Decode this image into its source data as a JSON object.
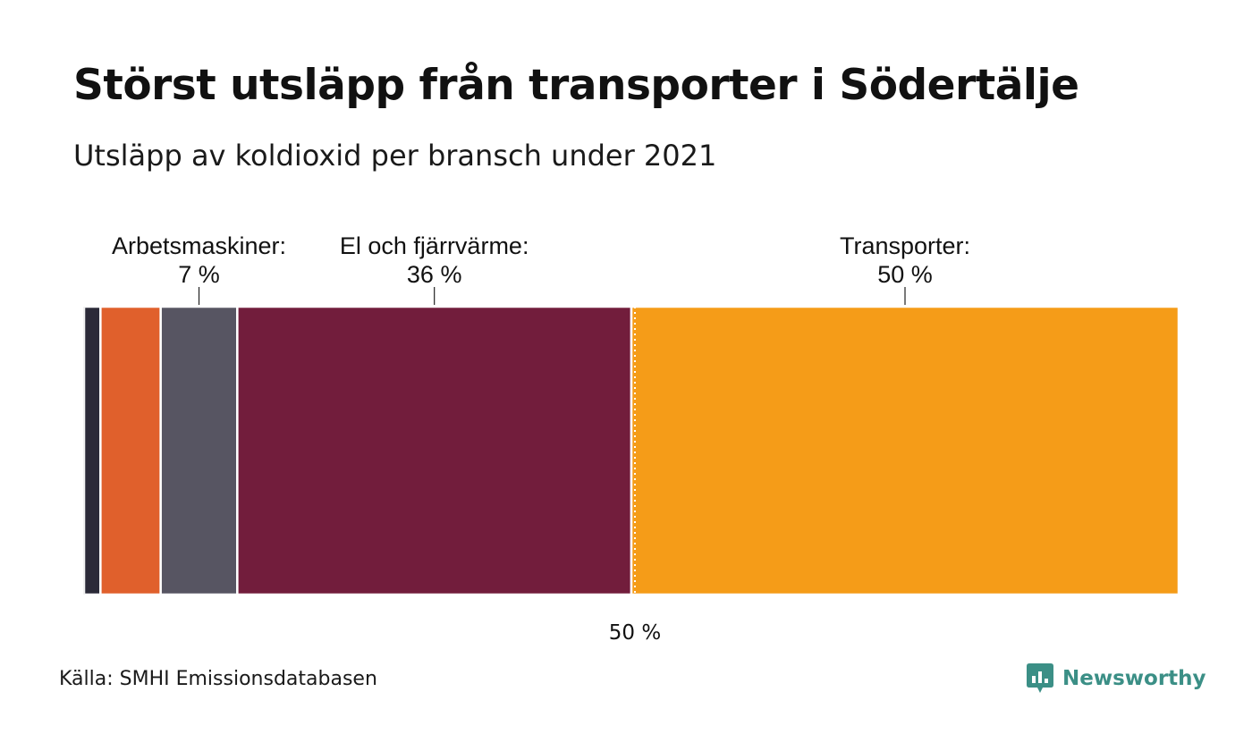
{
  "header": {
    "title": "Störst utsläpp från transporter i Södertälje",
    "subtitle": "Utsläpp av koldioxid per bransch under 2021"
  },
  "footer": {
    "source": "Källa: SMHI Emissionsdatabasen",
    "brand": "Newsworthy",
    "brand_color": "#3b8f86"
  },
  "chart_data": {
    "type": "bar",
    "orientation": "horizontal-stacked-100",
    "axis_range": [
      0,
      100
    ],
    "reference_line": {
      "value": 50,
      "label": "50 %"
    },
    "segments": [
      {
        "value": 1.5,
        "color": "#2b2a38",
        "label": "",
        "value_label": ""
      },
      {
        "value": 5.5,
        "color": "#e0602c",
        "label": "",
        "value_label": ""
      },
      {
        "value": 7,
        "color": "#575562",
        "label": "Arbetsmaskiner:",
        "value_label": "7 %"
      },
      {
        "value": 36,
        "color": "#721d3c",
        "label": "El och fjärrvärme:",
        "value_label": "36 %"
      },
      {
        "value": 50,
        "color": "#f59c18",
        "label": "Transporter:",
        "value_label": "50 %"
      }
    ]
  }
}
